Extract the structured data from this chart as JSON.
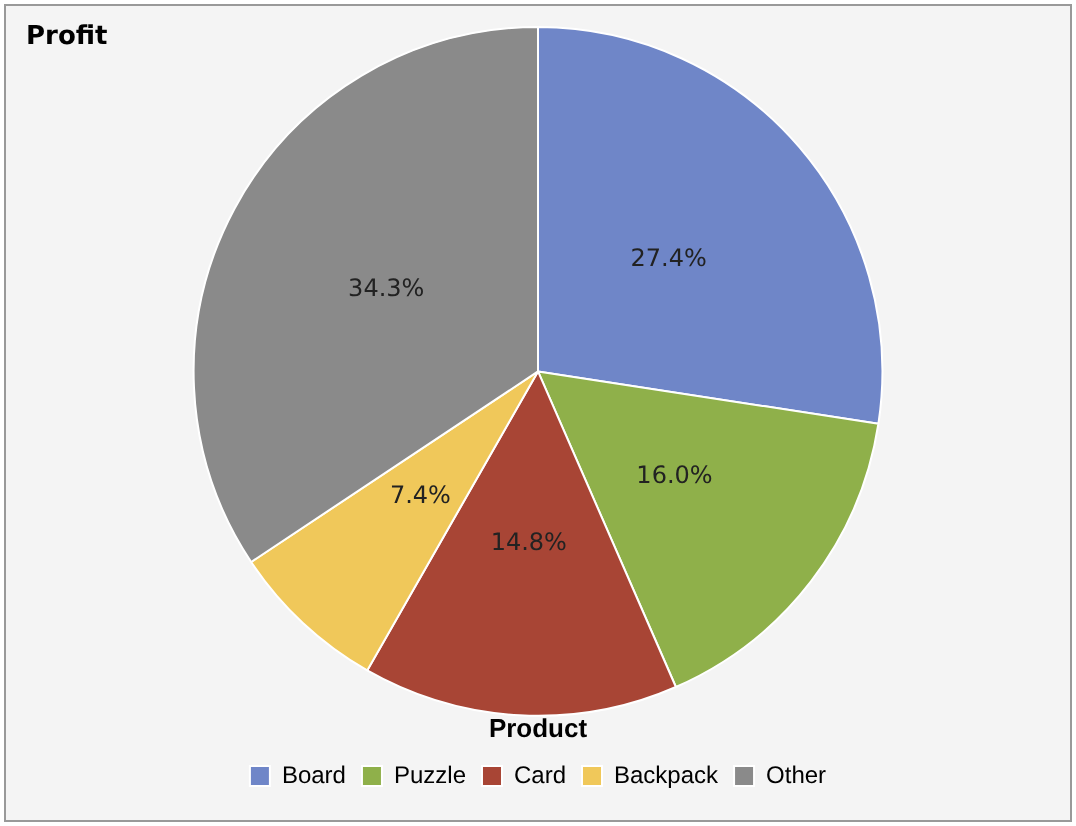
{
  "chart_data": {
    "type": "pie",
    "title": "Profit",
    "legend_title": "Product",
    "legend": "bottom",
    "categories": [
      "Board",
      "Puzzle",
      "Card",
      "Backpack",
      "Other"
    ],
    "values": [
      27.4,
      16.0,
      14.8,
      7.4,
      34.3
    ],
    "colors": [
      "#6f86c8",
      "#8fb04a",
      "#a84535",
      "#f0c85a",
      "#8a8a8a"
    ],
    "value_labels": [
      "27.4%",
      "16.0%",
      "14.8%",
      "7.4%",
      "34.3%"
    ]
  }
}
